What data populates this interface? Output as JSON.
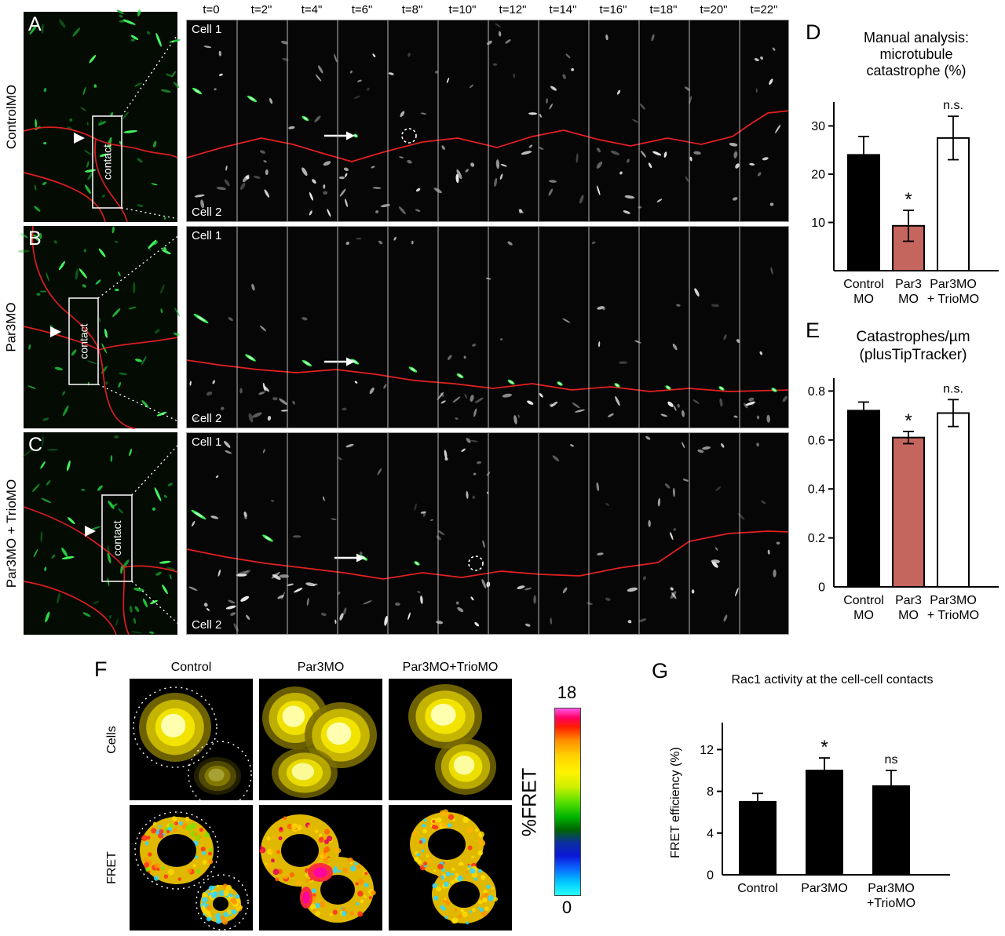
{
  "figure": {
    "montage": {
      "time_labels": [
        "t=0",
        "t=2\"",
        "t=4\"",
        "t=6\"",
        "t=8\"",
        "t=10\"",
        "t=12\"",
        "t=14\"",
        "t=16\"",
        "t=18\"",
        "t=20\"",
        "t=22\""
      ],
      "rows": [
        {
          "letter": "A",
          "side_label": "ControlMO",
          "contact_label": "contact",
          "cell_top": "Cell 1",
          "cell_bottom": "Cell 2"
        },
        {
          "letter": "B",
          "side_label": "Par3MO",
          "contact_label": "contact",
          "cell_top": "Cell 1",
          "cell_bottom": "Cell 2"
        },
        {
          "letter": "C",
          "side_label": "Par3MO + TrioMO",
          "contact_label": "contact",
          "cell_top": "Cell 1",
          "cell_bottom": "Cell 2"
        }
      ]
    },
    "panel_D": {
      "letter": "D",
      "title_lines": [
        "Manual analysis:",
        "microtubule",
        "catastrophe (%)"
      ]
    },
    "panel_E": {
      "letter": "E",
      "title_lines": [
        "Catastrophes/µm",
        "(plusTipTracker)"
      ]
    },
    "panel_F": {
      "letter": "F",
      "column_headers": [
        "Control",
        "Par3MO",
        "Par3MO+TrioMO"
      ],
      "row_labels": [
        "Cells",
        "FRET"
      ],
      "scale": {
        "max": "18",
        "min": "0",
        "label": "%FRET"
      }
    },
    "panel_G": {
      "letter": "G",
      "title": "Rac1 activity at the cell-cell contacts",
      "ylabel": "FRET efficiency (%)"
    }
  },
  "chart_data": [
    {
      "id": "D",
      "type": "bar",
      "title": "Manual analysis: microtubule catastrophe (%)",
      "categories": [
        "Control MO",
        "Par3 MO",
        "Par3MO + TrioMO"
      ],
      "category_lines": [
        [
          "Control",
          "MO"
        ],
        [
          "Par3",
          "MO"
        ],
        [
          "Par3MO",
          "+ TrioMO"
        ]
      ],
      "values": [
        24,
        9.3,
        27.5
      ],
      "errors": [
        3.8,
        3.2,
        4.5
      ],
      "annotations": [
        "",
        "*",
        "n.s."
      ],
      "bar_colors": [
        "#000000",
        "#c4655e",
        "#ffffff"
      ],
      "ylim": [
        0,
        35
      ],
      "yticks": [
        "10",
        "20",
        "30"
      ],
      "ylabel": ""
    },
    {
      "id": "E",
      "type": "bar",
      "title": "Catastrophes/µm (plusTipTracker)",
      "categories": [
        "Control MO",
        "Par3 MO",
        "Par3MO + TrioMO"
      ],
      "category_lines": [
        [
          "Control",
          "MO"
        ],
        [
          "Par3",
          "MO"
        ],
        [
          "Par3MO",
          "+ TrioMO"
        ]
      ],
      "values": [
        0.72,
        0.61,
        0.71
      ],
      "errors": [
        0.035,
        0.025,
        0.055
      ],
      "annotations": [
        "",
        "*",
        "n.s."
      ],
      "bar_colors": [
        "#000000",
        "#c4655e",
        "#ffffff"
      ],
      "ylim": [
        0,
        0.85
      ],
      "yticks": [
        "0",
        "0.2",
        "0.4",
        "0.6",
        "0.8"
      ],
      "ylabel": ""
    },
    {
      "id": "G",
      "type": "bar",
      "title": "Rac1 activity at the cell-cell contacts",
      "categories": [
        "Control",
        "Par3MO",
        "Par3MO +TrioMO"
      ],
      "category_lines": [
        [
          "Control"
        ],
        [
          "Par3MO"
        ],
        [
          "Par3MO",
          "+TrioMO"
        ]
      ],
      "values": [
        7,
        10,
        8.5
      ],
      "errors": [
        0.8,
        1.2,
        1.5
      ],
      "annotations": [
        "",
        "*",
        "ns"
      ],
      "bar_colors": [
        "#000000",
        "#000000",
        "#000000"
      ],
      "ylim": [
        0,
        14
      ],
      "yticks": [
        "0",
        "4",
        "8",
        "12"
      ],
      "ylabel": "FRET efficiency (%)"
    }
  ]
}
